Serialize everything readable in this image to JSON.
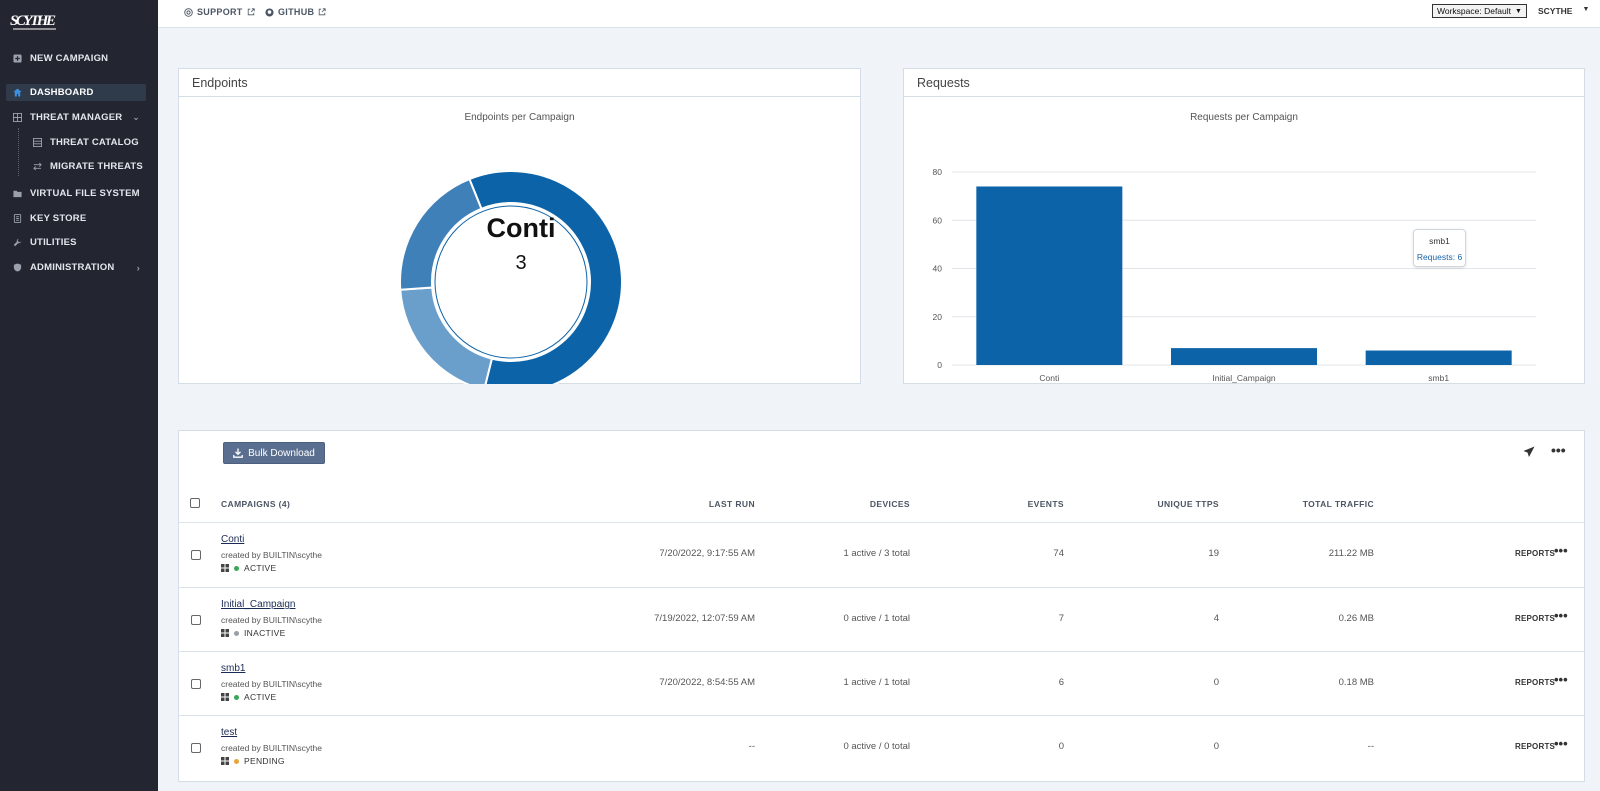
{
  "app": {
    "logo_text": "SCYTHE"
  },
  "header": {
    "support_label": "SUPPORT",
    "github_label": "GITHUB",
    "workspace_label": "Workspace: Default",
    "user_label": "SCYTHE"
  },
  "sidebar": {
    "items": [
      {
        "label": "NEW CAMPAIGN",
        "icon": "plus-square-icon"
      },
      {
        "label": "DASHBOARD",
        "icon": "home-icon",
        "active": true
      },
      {
        "label": "THREAT MANAGER",
        "icon": "grid-icon"
      },
      {
        "label": "THREAT CATALOG",
        "icon": "list-icon"
      },
      {
        "label": "MIGRATE THREATS",
        "icon": "swap-icon"
      },
      {
        "label": "VIRTUAL FILE SYSTEM",
        "icon": "folder-icon"
      },
      {
        "label": "KEY STORE",
        "icon": "key-icon"
      },
      {
        "label": "UTILITIES",
        "icon": "tools-icon"
      },
      {
        "label": "ADMINISTRATION",
        "icon": "shield-icon"
      }
    ]
  },
  "endpoints_panel": {
    "title": "Endpoints",
    "chart_title": "Endpoints per Campaign",
    "center_label": "Conti",
    "center_value": "3"
  },
  "requests_panel": {
    "title": "Requests",
    "chart_title": "Requests per Campaign",
    "tooltip_name": "smb1",
    "tooltip_value": "Requests: 6"
  },
  "chart_data": [
    {
      "type": "pie",
      "title": "Endpoints per Campaign",
      "categories": [
        "Conti",
        "Initial_Campaign",
        "smb1"
      ],
      "values": [
        3,
        1,
        1
      ],
      "colors": [
        "#0d63a8",
        "#6a9fcb",
        "#3f80b8"
      ]
    },
    {
      "type": "bar",
      "title": "Requests per Campaign",
      "categories": [
        "Conti",
        "Initial_Campaign",
        "smb1"
      ],
      "values": [
        74,
        7,
        6
      ],
      "ylim": [
        0,
        80
      ],
      "yticks": [
        0,
        20,
        40,
        60,
        80
      ],
      "grid": true,
      "color": "#0d63a8"
    }
  ],
  "table": {
    "bulk_download_label": "Bulk Download",
    "headers": {
      "campaigns": "CAMPAIGNS (4)",
      "last_run": "LAST RUN",
      "devices": "DEVICES",
      "events": "EVENTS",
      "unique_ttps": "UNIQUE TTPS",
      "total_traffic": "TOTAL TRAFFIC"
    },
    "rows": [
      {
        "name": "Conti",
        "creator": "created by BUILTIN\\scythe",
        "status": "ACTIVE",
        "status_color": "#3aa757",
        "last_run": "7/20/2022, 9:17:55 AM",
        "devices": "1 active / 3 total",
        "events": "74",
        "ttps": "19",
        "traffic": "211.22 MB",
        "reports": "REPORTS"
      },
      {
        "name": "Initial_Campaign",
        "creator": "created by BUILTIN\\scythe",
        "status": "INACTIVE",
        "status_color": "#9aa0a6",
        "last_run": "7/19/2022, 12:07:59 AM",
        "devices": "0 active / 1 total",
        "events": "7",
        "ttps": "4",
        "traffic": "0.26 MB",
        "reports": "REPORTS"
      },
      {
        "name": "smb1",
        "creator": "created by BUILTIN\\scythe",
        "status": "ACTIVE",
        "status_color": "#3aa757",
        "last_run": "7/20/2022, 8:54:55 AM",
        "devices": "1 active / 1 total",
        "events": "6",
        "ttps": "0",
        "traffic": "0.18 MB",
        "reports": "REPORTS"
      },
      {
        "name": "test",
        "creator": "created by BUILTIN\\scythe",
        "status": "PENDING",
        "status_color": "#e8a33d",
        "last_run": "--",
        "devices": "0 active / 0 total",
        "events": "0",
        "ttps": "0",
        "traffic": "--",
        "reports": "REPORTS"
      }
    ]
  }
}
